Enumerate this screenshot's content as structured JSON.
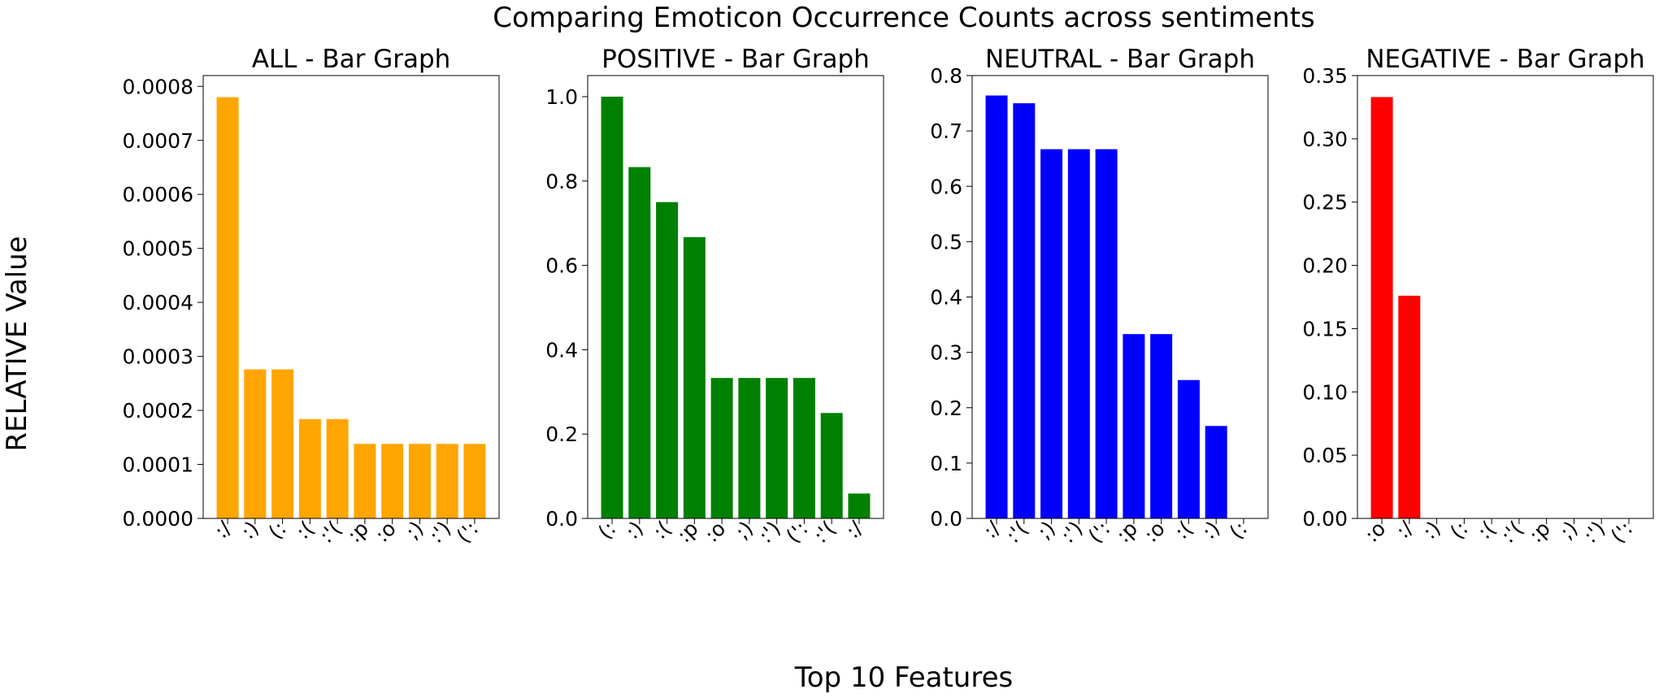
{
  "figure": {
    "title": "Comparing Emoticon Occurrence Counts across sentiments",
    "xlabel": "Top 10 Features",
    "ylabel": "RELATIVE Value"
  },
  "chart_data": [
    {
      "type": "bar",
      "title": "ALL - Bar Graph",
      "color": "#FFA500",
      "categories": [
        ":/",
        ":)",
        "(:",
        ":(",
        ":'(",
        ":p",
        ":o",
        ";)",
        ":')",
        "(':"
      ],
      "values": [
        0.00078,
        0.000276,
        0.000276,
        0.000184,
        0.000184,
        0.000138,
        0.000138,
        0.000138,
        0.000138,
        0.000138
      ],
      "ylim": [
        0,
        0.00082
      ],
      "yticks": [
        "0.0000",
        "0.0001",
        "0.0002",
        "0.0003",
        "0.0004",
        "0.0005",
        "0.0006",
        "0.0007",
        "0.0008"
      ],
      "ytick_values": [
        0,
        0.0001,
        0.0002,
        0.0003,
        0.0004,
        0.0005,
        0.0006,
        0.0007,
        0.0008
      ]
    },
    {
      "type": "bar",
      "title": "POSITIVE - Bar Graph",
      "color": "#008000",
      "categories": [
        "(:",
        ":)",
        ":(",
        ":p",
        ":o",
        ";)",
        ":')",
        "(':",
        ":'(",
        ":/"
      ],
      "values": [
        1.0,
        0.833,
        0.75,
        0.667,
        0.333,
        0.333,
        0.333,
        0.333,
        0.25,
        0.059
      ],
      "ylim": [
        0,
        1.05
      ],
      "yticks": [
        "0.0",
        "0.2",
        "0.4",
        "0.6",
        "0.8",
        "1.0"
      ],
      "ytick_values": [
        0,
        0.2,
        0.4,
        0.6,
        0.8,
        1.0
      ]
    },
    {
      "type": "bar",
      "title": "NEUTRAL - Bar Graph",
      "color": "#0000FF",
      "categories": [
        ":/",
        ":'(",
        ";)",
        ":')",
        "(':",
        ":p",
        ":o",
        ":(",
        ":)",
        "(:"
      ],
      "values": [
        0.764,
        0.75,
        0.667,
        0.667,
        0.667,
        0.333,
        0.333,
        0.25,
        0.167,
        0
      ],
      "ylim": [
        0,
        0.8
      ],
      "yticks": [
        "0.0",
        "0.1",
        "0.2",
        "0.3",
        "0.4",
        "0.5",
        "0.6",
        "0.7",
        "0.8"
      ],
      "ytick_values": [
        0,
        0.1,
        0.2,
        0.3,
        0.4,
        0.5,
        0.6,
        0.7,
        0.8
      ]
    },
    {
      "type": "bar",
      "title": "NEGATIVE - Bar Graph",
      "color": "#FF0000",
      "categories": [
        ":o",
        ":/",
        ":)",
        "(:",
        ":(",
        ":'(",
        ":p",
        ";)",
        ":')",
        "(':"
      ],
      "values": [
        0.333,
        0.176,
        0,
        0,
        0,
        0,
        0,
        0,
        0,
        0
      ],
      "ylim": [
        0,
        0.35
      ],
      "yticks": [
        "0.00",
        "0.05",
        "0.10",
        "0.15",
        "0.20",
        "0.25",
        "0.30",
        "0.35"
      ],
      "ytick_values": [
        0,
        0.05,
        0.1,
        0.15,
        0.2,
        0.25,
        0.3,
        0.35
      ]
    }
  ]
}
